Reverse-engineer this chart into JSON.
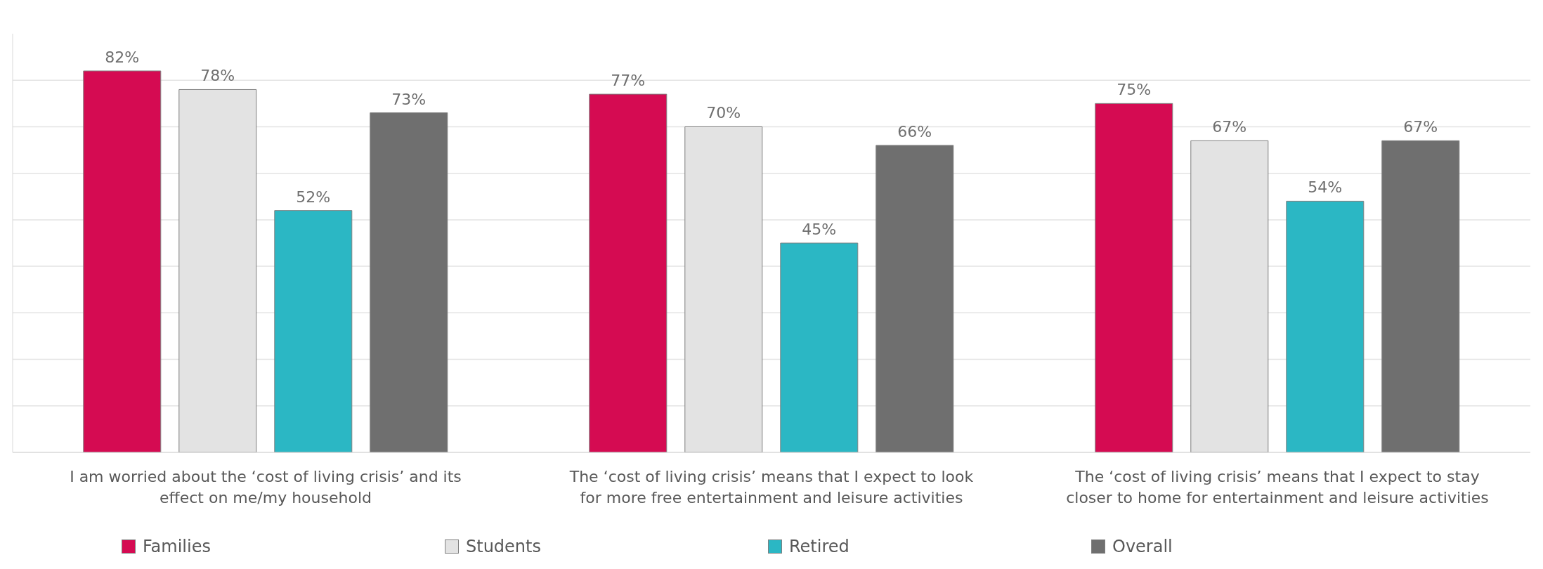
{
  "chart_data": {
    "type": "bar",
    "categories": [
      "I am worried about the ‘cost of living crisis’ and its effect on me/my household",
      "The ‘cost of living crisis’ means that I expect to look for more free entertainment and leisure activities",
      "The ‘cost of living crisis’ means that I expect to stay closer to home for entertainment and leisure activities"
    ],
    "series": [
      {
        "name": "Families",
        "color": "#d50b52",
        "values": [
          82,
          77,
          75
        ],
        "value_labels": [
          "82%",
          "77%",
          "75%"
        ]
      },
      {
        "name": "Students",
        "color": "#e3e3e3",
        "values": [
          78,
          70,
          67
        ],
        "value_labels": [
          "78%",
          "70%",
          "67%"
        ]
      },
      {
        "name": "Retired",
        "color": "#2bb7c4",
        "values": [
          52,
          45,
          54
        ],
        "value_labels": [
          "52%",
          "45%",
          "54%"
        ]
      },
      {
        "name": "Overall",
        "color": "#6f6f6f",
        "values": [
          73,
          66,
          67
        ],
        "value_labels": [
          "73%",
          "66%",
          "67%"
        ]
      }
    ],
    "yticks": [
      {
        "value": 0,
        "label": null
      },
      {
        "value": 10,
        "label": null
      },
      {
        "value": 20,
        "label": null
      },
      {
        "value": 30,
        "label": null
      },
      {
        "value": 40,
        "label": null
      },
      {
        "value": 50,
        "label": null
      },
      {
        "value": 60,
        "label": null
      },
      {
        "value": 70,
        "label": null
      },
      {
        "value": 80,
        "label": null
      }
    ],
    "ylim": [
      0,
      90
    ],
    "grid": "y",
    "legend": "bottom",
    "tick_labels": "x"
  }
}
